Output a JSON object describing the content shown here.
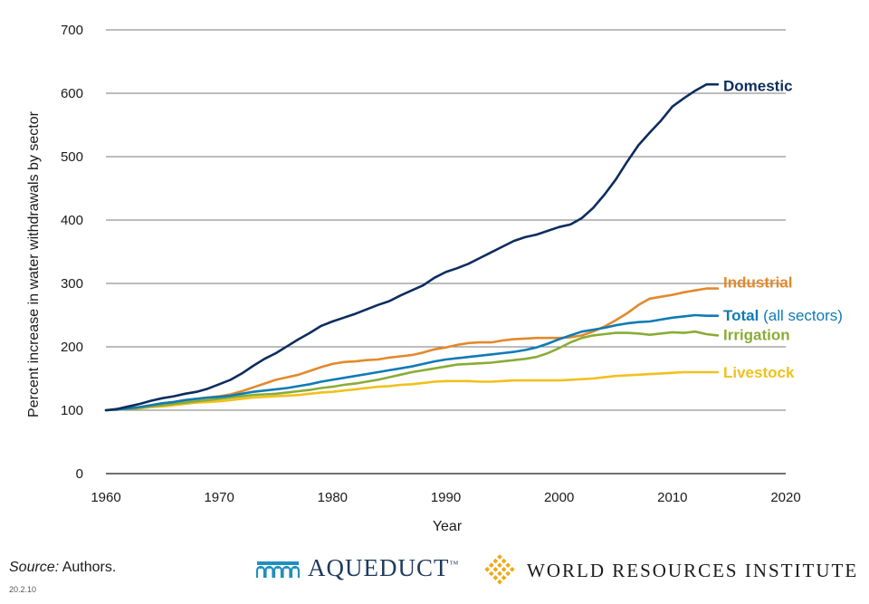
{
  "chart_data": {
    "type": "line",
    "title": "",
    "xlabel": "Year",
    "ylabel": "Percent increase in water withdrawals by sector",
    "xlim": [
      1960,
      2020
    ],
    "ylim": [
      0,
      700
    ],
    "xticks": [
      1960,
      1970,
      1980,
      1990,
      2000,
      2010,
      2020
    ],
    "yticks": [
      0,
      100,
      200,
      300,
      400,
      500,
      600,
      700
    ],
    "grid": true,
    "x": [
      1960,
      1961,
      1962,
      1963,
      1964,
      1965,
      1966,
      1967,
      1968,
      1969,
      1970,
      1971,
      1972,
      1973,
      1974,
      1975,
      1976,
      1977,
      1978,
      1979,
      1980,
      1981,
      1982,
      1983,
      1984,
      1985,
      1986,
      1987,
      1988,
      1989,
      1990,
      1991,
      1992,
      1993,
      1994,
      1995,
      1996,
      1997,
      1998,
      1999,
      2000,
      2001,
      2002,
      2003,
      2004,
      2005,
      2006,
      2007,
      2008,
      2009,
      2010,
      2011,
      2012,
      2013,
      2014
    ],
    "series": [
      {
        "name": "Domestic",
        "label": "Domestic",
        "label_sub": "",
        "color": "#0d2d5e",
        "values": [
          100,
          102,
          106,
          110,
          115,
          119,
          122,
          126,
          129,
          134,
          141,
          148,
          158,
          170,
          181,
          190,
          201,
          212,
          222,
          233,
          240,
          246,
          252,
          259,
          266,
          272,
          281,
          289,
          297,
          309,
          318,
          324,
          331,
          340,
          349,
          358,
          367,
          373,
          377,
          383,
          389,
          393,
          403,
          419,
          440,
          464,
          492,
          518,
          538,
          557,
          579,
          592,
          604,
          614,
          614
        ]
      },
      {
        "name": "Industrial",
        "label": "Industrial",
        "label_sub": "",
        "color": "#e3892b",
        "values": [
          100,
          101,
          103,
          105,
          108,
          111,
          113,
          116,
          118,
          120,
          122,
          125,
          130,
          136,
          142,
          148,
          152,
          156,
          162,
          168,
          173,
          176,
          177,
          179,
          180,
          183,
          185,
          187,
          191,
          196,
          199,
          203,
          206,
          207,
          207,
          210,
          212,
          213,
          214,
          214,
          214,
          215,
          218,
          224,
          232,
          242,
          253,
          266,
          276,
          279,
          282,
          286,
          289,
          292,
          292
        ]
      },
      {
        "name": "Total",
        "label": "Total",
        "label_sub": "(all sectors)",
        "color": "#0f7bb4",
        "values": [
          100,
          101,
          103,
          105,
          108,
          111,
          113,
          116,
          118,
          120,
          121,
          123,
          126,
          129,
          131,
          133,
          135,
          138,
          141,
          145,
          148,
          151,
          154,
          157,
          160,
          163,
          166,
          169,
          173,
          177,
          180,
          182,
          184,
          186,
          188,
          190,
          192,
          195,
          199,
          205,
          212,
          218,
          224,
          227,
          230,
          234,
          237,
          239,
          240,
          243,
          246,
          248,
          250,
          249,
          249
        ]
      },
      {
        "name": "Irrigation",
        "label": "Irrigation",
        "label_sub": "",
        "color": "#8aac36",
        "values": [
          100,
          101,
          102,
          104,
          106,
          108,
          110,
          112,
          114,
          116,
          118,
          120,
          122,
          124,
          125,
          126,
          128,
          130,
          132,
          135,
          137,
          140,
          142,
          145,
          148,
          152,
          156,
          160,
          163,
          166,
          169,
          172,
          173,
          174,
          175,
          177,
          179,
          181,
          184,
          190,
          198,
          207,
          214,
          218,
          220,
          222,
          222,
          221,
          219,
          221,
          223,
          222,
          224,
          220,
          218
        ]
      },
      {
        "name": "Livestock",
        "label": "Livestock",
        "label_sub": "",
        "color": "#f2c01c",
        "values": [
          100,
          101,
          102,
          103,
          105,
          106,
          108,
          110,
          112,
          113,
          114,
          116,
          118,
          120,
          121,
          122,
          123,
          124,
          126,
          128,
          129,
          131,
          133,
          135,
          137,
          138,
          140,
          141,
          143,
          145,
          146,
          146,
          146,
          145,
          145,
          146,
          147,
          147,
          147,
          147,
          147,
          148,
          149,
          150,
          152,
          154,
          155,
          156,
          157,
          158,
          159,
          160,
          160,
          160,
          160
        ]
      }
    ]
  },
  "footer": {
    "source_label": "Source:",
    "source_text": " Authors.",
    "code": "20.2.10",
    "aqueduct": "AQUEDUCT",
    "aqueduct_tm": "™",
    "wri": "WORLD RESOURCES INSTITUTE"
  },
  "colors": {
    "aqueduct_icon": "#1f8fc0",
    "wri_icon": "#f0a90f",
    "grid": "#4d4d4d"
  }
}
